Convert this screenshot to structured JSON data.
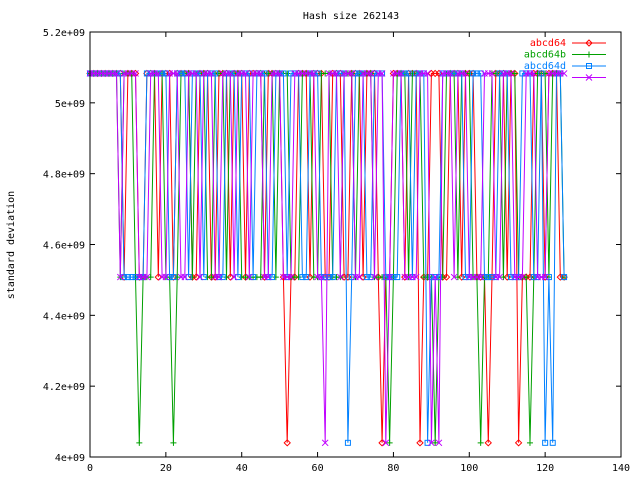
{
  "chart_data": {
    "type": "line",
    "title": "Hash size 262143",
    "xlabel": "",
    "ylabel": "standard deviation",
    "xlim": [
      0,
      140
    ],
    "ylim": [
      4000000000,
      5200000000
    ],
    "x_ticks": [
      0,
      20,
      40,
      60,
      80,
      100,
      120,
      140
    ],
    "x_tick_labels": [
      "0",
      "20",
      "40",
      "60",
      "80",
      "100",
      "120",
      "140"
    ],
    "y_ticks": [
      4000000000,
      4200000000,
      4400000000,
      4600000000,
      4800000000,
      5000000000,
      5200000000
    ],
    "y_tick_labels": [
      "4e+09",
      "4.2e+09",
      "4.4e+09",
      "4.6e+09",
      "4.8e+09",
      "5e+09",
      "5.2e+09"
    ],
    "legend_position": "top-right",
    "levels": {
      "high": 5083000000,
      "mid": 4508000000,
      "low": 4040000000
    },
    "series": [
      {
        "name": "abcd64",
        "color": "#ff0000",
        "marker": "diamond",
        "x_start": 0,
        "x_end": 125,
        "high_ranges": [
          [
            0,
            8
          ],
          [
            10,
            12
          ],
          [
            15,
            17
          ],
          [
            19,
            21
          ],
          [
            23,
            26
          ],
          [
            29,
            31
          ],
          [
            34,
            36
          ],
          [
            38,
            40
          ],
          [
            42,
            45
          ],
          [
            47,
            50
          ],
          [
            55,
            57
          ],
          [
            59,
            61
          ],
          [
            64,
            66
          ],
          [
            69,
            71
          ],
          [
            73,
            75
          ],
          [
            80,
            82
          ],
          [
            84,
            86
          ],
          [
            90,
            92
          ],
          [
            95,
            97
          ],
          [
            99,
            101
          ],
          [
            107,
            109
          ],
          [
            111,
            113
          ],
          [
            117,
            119
          ],
          [
            121,
            123
          ]
        ],
        "low_points": [
          52,
          77,
          87,
          105,
          113
        ]
      },
      {
        "name": "abcd64b",
        "color": "#00a000",
        "marker": "plus",
        "x_start": 0,
        "x_end": 125,
        "high_ranges": [
          [
            0,
            7
          ],
          [
            9,
            11
          ],
          [
            17,
            19
          ],
          [
            24,
            26
          ],
          [
            28,
            30
          ],
          [
            33,
            35
          ],
          [
            37,
            39
          ],
          [
            46,
            48
          ],
          [
            50,
            52
          ],
          [
            56,
            58
          ],
          [
            61,
            63
          ],
          [
            67,
            69
          ],
          [
            71,
            74
          ],
          [
            81,
            83
          ],
          [
            85,
            87
          ],
          [
            94,
            96
          ],
          [
            98,
            100
          ],
          [
            106,
            108
          ],
          [
            110,
            112
          ],
          [
            118,
            120
          ],
          [
            122,
            124
          ]
        ],
        "low_points": [
          13,
          22,
          79,
          91,
          103,
          116
        ]
      },
      {
        "name": "abcd64d",
        "color": "#0080ff",
        "marker": "square",
        "x_start": 0,
        "x_end": 125,
        "high_ranges": [
          [
            0,
            8
          ],
          [
            15,
            20
          ],
          [
            23,
            25
          ],
          [
            27,
            29
          ],
          [
            31,
            33
          ],
          [
            36,
            38
          ],
          [
            40,
            42
          ],
          [
            44,
            46
          ],
          [
            49,
            51
          ],
          [
            53,
            55
          ],
          [
            58,
            60
          ],
          [
            65,
            67
          ],
          [
            70,
            72
          ],
          [
            75,
            77
          ],
          [
            82,
            84
          ],
          [
            86,
            88
          ],
          [
            93,
            95
          ],
          [
            96,
            98
          ],
          [
            101,
            103
          ],
          [
            108,
            110
          ],
          [
            114,
            116
          ],
          [
            119,
            120
          ],
          [
            123,
            124
          ]
        ],
        "low_points": [
          68,
          89,
          120,
          122
        ]
      },
      {
        "name": "",
        "color": "#c000ff",
        "marker": "cross",
        "x_start": 0,
        "x_end": 125,
        "high_ranges": [
          [
            0,
            7
          ],
          [
            9,
            12
          ],
          [
            16,
            18
          ],
          [
            21,
            23
          ],
          [
            26,
            28
          ],
          [
            30,
            32
          ],
          [
            35,
            37
          ],
          [
            39,
            41
          ],
          [
            43,
            45
          ],
          [
            48,
            50
          ],
          [
            54,
            56
          ],
          [
            57,
            59
          ],
          [
            63,
            65
          ],
          [
            67,
            69
          ],
          [
            72,
            74
          ],
          [
            76,
            77
          ],
          [
            80,
            82
          ],
          [
            87,
            89
          ],
          [
            93,
            95
          ],
          [
            97,
            99
          ],
          [
            104,
            106
          ],
          [
            109,
            111
          ],
          [
            115,
            117
          ],
          [
            121,
            123
          ],
          [
            124,
            125
          ]
        ],
        "low_points": [
          62,
          78,
          90,
          92
        ]
      }
    ]
  }
}
